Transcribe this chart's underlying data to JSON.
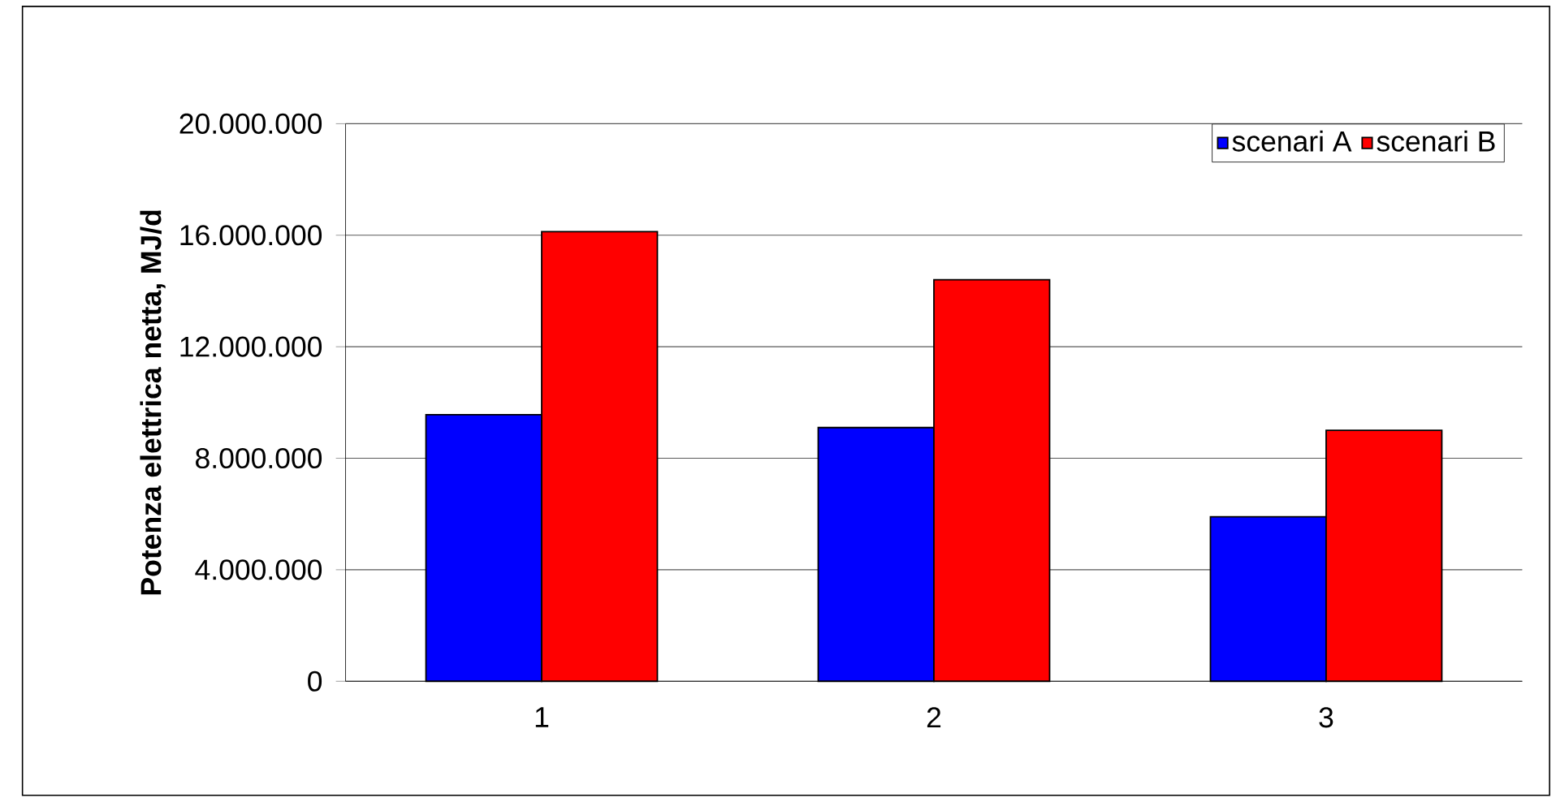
{
  "chart_data": {
    "type": "bar",
    "ylabel": "Potenza elettrica netta, MJ/d",
    "categories": [
      "1",
      "2",
      "3"
    ],
    "series": [
      {
        "name": "scenari A",
        "color": "#0000ff",
        "values": [
          9560000,
          9100000,
          5900000
        ]
      },
      {
        "name": "scenari B",
        "color": "#ff0000",
        "values": [
          16130000,
          14400000,
          9000000
        ]
      }
    ],
    "ylim": [
      0,
      20000000
    ],
    "yticks": [
      {
        "value": 0,
        "label": "0"
      },
      {
        "value": 4000000,
        "label": "4.000.000"
      },
      {
        "value": 8000000,
        "label": "8.000.000"
      },
      {
        "value": 12000000,
        "label": "12.000.000"
      },
      {
        "value": 16000000,
        "label": "16.000.000"
      },
      {
        "value": 20000000,
        "label": "20.000.000"
      }
    ],
    "grid": "y",
    "legend": "top right"
  }
}
